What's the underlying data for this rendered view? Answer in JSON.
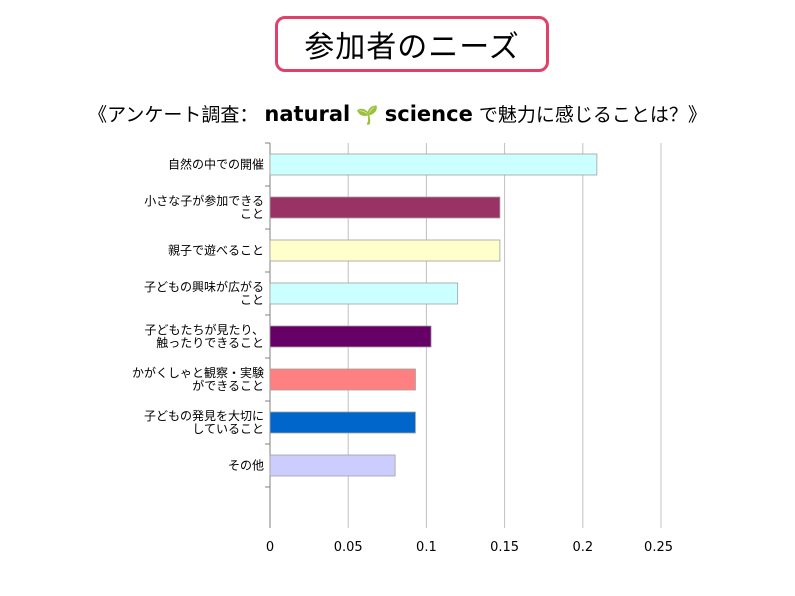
{
  "header": {
    "title": "参加者のニーズ",
    "subtitle_prefix": "《アンケート調査：",
    "brand_left": "natural",
    "brand_mark": "leaf-sprout-icon",
    "brand_right": "science",
    "subtitle_suffix": "で魅力に感じることは？》"
  },
  "chart_data": {
    "type": "bar",
    "orientation": "horizontal",
    "categories": [
      "自然の中での開催",
      "小さな子が参加できること",
      "親子で遊べること",
      "子どもの興味が広がること",
      "子どもたちが見たり、触ったりできること",
      "かがくしゃと観察・実験ができること",
      "子どもの発見を大切にしていること",
      "その他"
    ],
    "category_lines": [
      [
        "自然の中での開催"
      ],
      [
        "小さな子が参加できる",
        "こと"
      ],
      [
        "親子で遊べること"
      ],
      [
        "子どもの興味が広がる",
        "こと"
      ],
      [
        "子どもたちが見たり、",
        "触ったりできること"
      ],
      [
        "かがくしゃと観察・実験",
        "ができること"
      ],
      [
        "子どもの発見を大切に",
        "していること"
      ],
      [
        "その他"
      ]
    ],
    "values": [
      0.209,
      0.147,
      0.147,
      0.12,
      0.103,
      0.093,
      0.093,
      0.08
    ],
    "colors": [
      "#ccffff",
      "#993366",
      "#ffffcc",
      "#ccffff",
      "#660066",
      "#ff8080",
      "#0066cc",
      "#ccccff"
    ],
    "xlim": [
      0,
      0.25
    ],
    "xticks": [
      "0",
      "0.05",
      "0.1",
      "0.15",
      "0.2",
      "0.25"
    ],
    "grid": true,
    "legend": "none"
  }
}
